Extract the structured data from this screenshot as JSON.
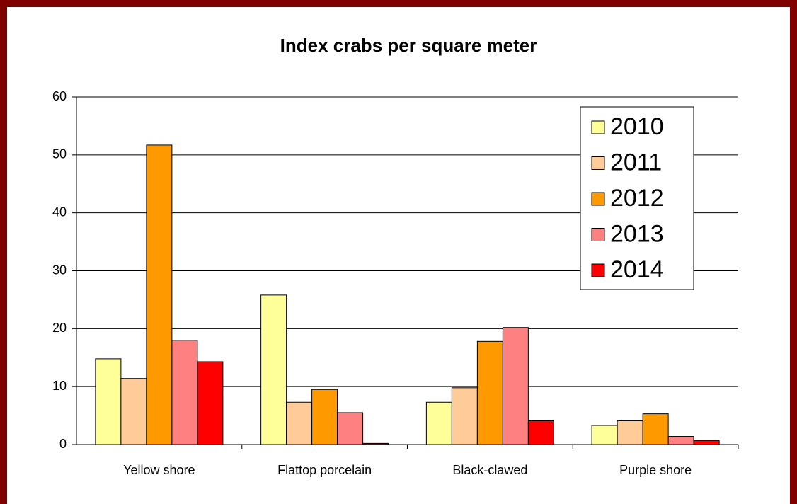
{
  "chart_data": {
    "type": "bar",
    "title": "Index crabs per square meter",
    "categories": [
      "Yellow shore",
      "Flattop porcelain",
      "Black-clawed",
      "Purple shore"
    ],
    "series": [
      {
        "name": "2010",
        "color": "#ffff99",
        "values": [
          14.8,
          25.8,
          7.3,
          3.3
        ]
      },
      {
        "name": "2011",
        "color": "#ffcc99",
        "values": [
          11.4,
          7.3,
          9.8,
          4.1
        ]
      },
      {
        "name": "2012",
        "color": "#ff9900",
        "values": [
          51.7,
          9.5,
          17.8,
          5.3
        ]
      },
      {
        "name": "2013",
        "color": "#ff8080",
        "values": [
          18.0,
          5.5,
          20.2,
          1.4
        ]
      },
      {
        "name": "2014",
        "color": "#ff0000",
        "values": [
          14.3,
          0.2,
          4.1,
          0.7
        ]
      }
    ],
    "ylim": [
      0,
      60
    ],
    "yticks": [
      0,
      10,
      20,
      30,
      40,
      50,
      60
    ],
    "grid": true,
    "legend": "upper right"
  }
}
